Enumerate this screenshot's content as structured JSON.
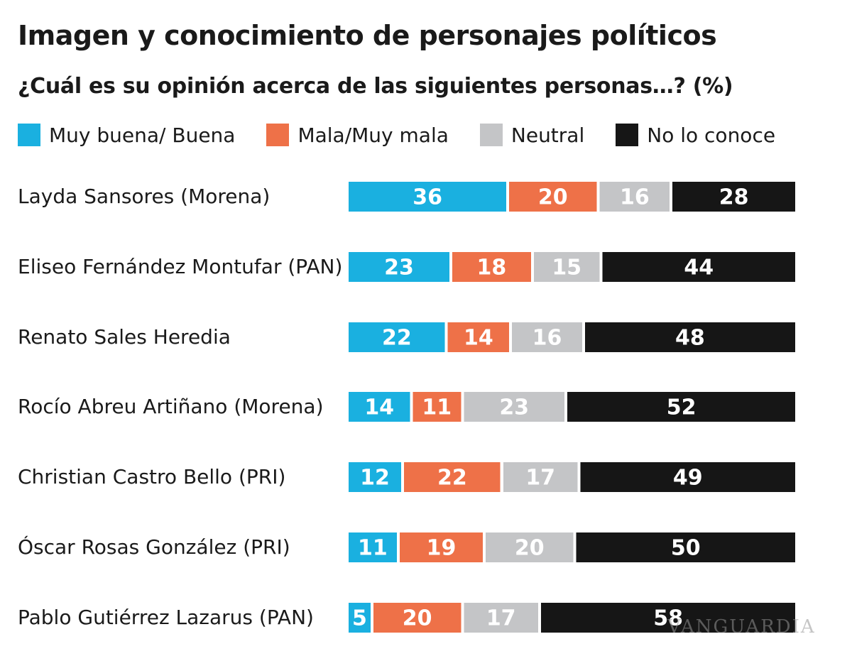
{
  "chart_data": {
    "type": "bar",
    "orientation": "horizontal",
    "stacked": true,
    "normalized": true,
    "title": "Imagen y conocimiento de personajes políticos",
    "subtitle": "¿Cuál es su opinión acerca de las siguientes personas…? (%)",
    "categories": [
      "Layda Sansores (Morena)",
      "Eliseo Fernández Montufar (PAN)",
      "Renato Sales Heredia",
      "Rocío Abreu Artiñano (Morena)",
      "Christian Castro Bello (PRI)",
      "Óscar Rosas González (PRI)",
      "Pablo Gutiérrez Lazarus (PAN)"
    ],
    "series": [
      {
        "name": "Muy buena/ Buena",
        "color": "#1ab0e0",
        "label_color": "#ffffff",
        "values": [
          36,
          23,
          22,
          14,
          12,
          11,
          5
        ]
      },
      {
        "name": "Mala/Muy mala",
        "color": "#ee7148",
        "label_color": "#ffffff",
        "values": [
          20,
          18,
          14,
          11,
          22,
          19,
          20
        ]
      },
      {
        "name": "Neutral",
        "color": "#c4c5c7",
        "label_color": "#ffffff",
        "values": [
          16,
          15,
          16,
          23,
          17,
          20,
          17
        ]
      },
      {
        "name": "No lo conoce",
        "color": "#161616",
        "label_color": "#ffffff",
        "values": [
          28,
          44,
          48,
          52,
          49,
          50,
          58
        ]
      }
    ],
    "legend_position": "top-left",
    "data_labels": true,
    "grid": false
  },
  "watermark": "VANGUARDIA"
}
